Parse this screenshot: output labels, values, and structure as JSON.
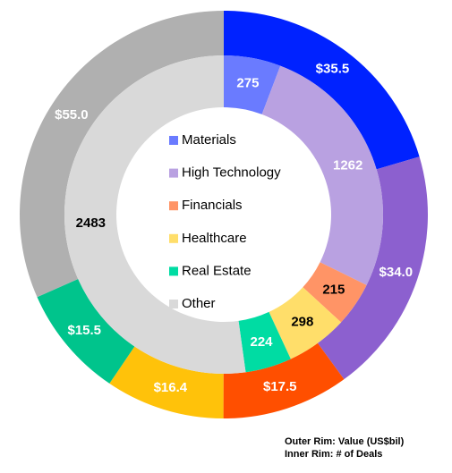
{
  "chart_data": {
    "type": "donut",
    "categories": [
      "Materials",
      "High Technology",
      "Financials",
      "Healthcare",
      "Real Estate",
      "Other"
    ],
    "series": [
      {
        "ring": "outer",
        "values": [
          35.5,
          34.0,
          17.5,
          16.4,
          15.5,
          55.0
        ],
        "value_labels": [
          "$35.5",
          "$34.0",
          "$17.5",
          "$16.4",
          "$15.5",
          "$55.0"
        ],
        "colors": [
          "#0022ff",
          "#8c60cf",
          "#ff4f00",
          "#ffc20a",
          "#00c48c",
          "#b0b0b0"
        ],
        "label_colors": [
          "#ffffff",
          "#ffffff",
          "#ffffff",
          "#ffffff",
          "#ffffff",
          "#ffffff"
        ]
      },
      {
        "ring": "inner",
        "values": [
          275,
          1262,
          215,
          298,
          224,
          2483
        ],
        "colors": [
          "#6a7bff",
          "#b9a1e1",
          "#ff9466",
          "#ffde6a",
          "#00dca3",
          "#d9d9d9"
        ],
        "label_colors": [
          "#ffffff",
          "#ffffff",
          "#000000",
          "#000000",
          "#ffffff",
          "#000000"
        ]
      }
    ],
    "annotations": [
      "Outer Rim: Value (US$bil)",
      "Inner Rim: # of Deals"
    ]
  }
}
